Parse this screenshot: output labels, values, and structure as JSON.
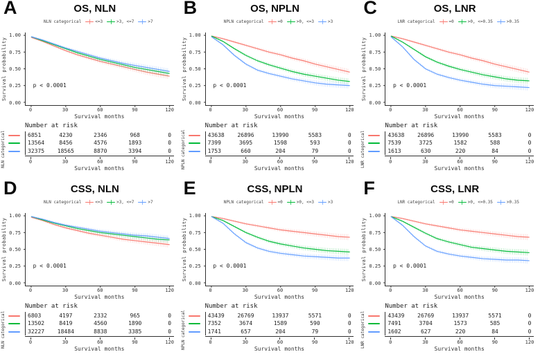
{
  "shared": {
    "ylabel": "Survival probability",
    "xlabel": "Survival months",
    "risk_header": "Number at risk",
    "ytick_labels": [
      "1.00",
      "0.75",
      "0.50",
      "0.25",
      "0.00"
    ],
    "xtick_labels": [
      "0",
      "30",
      "60",
      "90",
      "120"
    ]
  },
  "colors": {
    "red": "#F8766D",
    "green": "#00BA38",
    "blue": "#619CFF",
    "axis": "#333333"
  },
  "chart_data": [
    {
      "type": "line",
      "letter": "A",
      "title": "OS, NLN",
      "legend_title": "NLN categorical",
      "annotation": "p < 0.0001",
      "xlabel": "Survival months",
      "ylabel": "Survival probability",
      "xlim": [
        0,
        120
      ],
      "ylim": [
        0,
        1
      ],
      "xticks": [
        0,
        30,
        60,
        90,
        120
      ],
      "yticks": [
        0,
        0.25,
        0.5,
        0.75,
        1
      ],
      "legend_position": "top",
      "grid": false,
      "x": [
        0,
        10,
        20,
        30,
        40,
        50,
        60,
        70,
        80,
        90,
        100,
        110,
        120
      ],
      "series": [
        {
          "name": "<=3",
          "color": "red",
          "values": [
            0.97,
            0.91,
            0.84,
            0.77,
            0.71,
            0.66,
            0.61,
            0.57,
            0.53,
            0.49,
            0.45,
            0.42,
            0.39
          ]
        },
        {
          "name": ">3, <=7",
          "color": "green",
          "values": [
            0.98,
            0.92,
            0.86,
            0.8,
            0.74,
            0.69,
            0.64,
            0.6,
            0.56,
            0.52,
            0.49,
            0.46,
            0.43
          ]
        },
        {
          "name": ">7",
          "color": "blue",
          "values": [
            0.98,
            0.93,
            0.87,
            0.81,
            0.76,
            0.71,
            0.66,
            0.62,
            0.58,
            0.55,
            0.52,
            0.49,
            0.46
          ]
        }
      ],
      "risk_table": {
        "axis_label": "NLN categorical",
        "rows": [
          [
            "6851",
            "4230",
            "2346",
            "968",
            "0"
          ],
          [
            "13564",
            "8456",
            "4576",
            "1893",
            "0"
          ],
          [
            "32375",
            "18565",
            "8870",
            "3394",
            "0"
          ]
        ]
      }
    },
    {
      "type": "line",
      "letter": "B",
      "title": "OS, NPLN",
      "legend_title": "NPLN categorical",
      "annotation": "p < 0.0001",
      "xlabel": "Survival months",
      "ylabel": "Survival probability",
      "xlim": [
        0,
        120
      ],
      "ylim": [
        0,
        1
      ],
      "xticks": [
        0,
        30,
        60,
        90,
        120
      ],
      "yticks": [
        0,
        0.25,
        0.5,
        0.75,
        1
      ],
      "legend_position": "top",
      "grid": false,
      "x": [
        0,
        10,
        20,
        30,
        40,
        50,
        60,
        70,
        80,
        90,
        100,
        110,
        120
      ],
      "series": [
        {
          "name": "=0",
          "color": "red",
          "values": [
            0.99,
            0.95,
            0.9,
            0.85,
            0.8,
            0.75,
            0.71,
            0.66,
            0.62,
            0.57,
            0.53,
            0.49,
            0.45
          ]
        },
        {
          "name": ">0, <=3",
          "color": "green",
          "values": [
            0.99,
            0.91,
            0.8,
            0.7,
            0.62,
            0.56,
            0.51,
            0.46,
            0.42,
            0.39,
            0.36,
            0.33,
            0.31
          ]
        },
        {
          "name": ">3",
          "color": "blue",
          "values": [
            0.98,
            0.86,
            0.7,
            0.57,
            0.48,
            0.43,
            0.39,
            0.35,
            0.32,
            0.29,
            0.27,
            0.26,
            0.25
          ]
        }
      ],
      "risk_table": {
        "axis_label": "NPLN categorical",
        "rows": [
          [
            "43638",
            "26896",
            "13990",
            "5583",
            "0"
          ],
          [
            "7399",
            "3695",
            "1598",
            "593",
            "0"
          ],
          [
            "1753",
            "660",
            "204",
            "79",
            "0"
          ]
        ]
      }
    },
    {
      "type": "line",
      "letter": "C",
      "title": "OS, LNR",
      "legend_title": "LNR categorical",
      "annotation": "p < 0.0001",
      "xlabel": "Survival months",
      "ylabel": "Survival probability",
      "xlim": [
        0,
        120
      ],
      "ylim": [
        0,
        1
      ],
      "xticks": [
        0,
        30,
        60,
        90,
        120
      ],
      "yticks": [
        0,
        0.25,
        0.5,
        0.75,
        1
      ],
      "legend_position": "top",
      "grid": false,
      "x": [
        0,
        10,
        20,
        30,
        40,
        50,
        60,
        70,
        80,
        90,
        100,
        110,
        120
      ],
      "series": [
        {
          "name": "=0",
          "color": "red",
          "values": [
            0.99,
            0.95,
            0.9,
            0.85,
            0.8,
            0.75,
            0.71,
            0.66,
            0.62,
            0.57,
            0.53,
            0.49,
            0.45
          ]
        },
        {
          "name": ">0, <=0.35",
          "color": "green",
          "values": [
            0.99,
            0.9,
            0.79,
            0.68,
            0.6,
            0.54,
            0.49,
            0.45,
            0.41,
            0.38,
            0.35,
            0.33,
            0.32
          ]
        },
        {
          "name": ">0.35",
          "color": "blue",
          "values": [
            0.98,
            0.83,
            0.64,
            0.5,
            0.42,
            0.37,
            0.33,
            0.3,
            0.27,
            0.25,
            0.24,
            0.23,
            0.22
          ]
        }
      ],
      "risk_table": {
        "axis_label": "LNR categorical",
        "rows": [
          [
            "43638",
            "26896",
            "13990",
            "5583",
            "0"
          ],
          [
            "7539",
            "3725",
            "1582",
            "588",
            "0"
          ],
          [
            "1613",
            "630",
            "220",
            "84",
            "0"
          ]
        ]
      }
    },
    {
      "type": "line",
      "letter": "D",
      "title": "CSS, NLN",
      "legend_title": "NLN categorical",
      "annotation": "p < 0.0001",
      "xlabel": "Survival months",
      "ylabel": "Survival probability",
      "xlim": [
        0,
        120
      ],
      "ylim": [
        0,
        1
      ],
      "xticks": [
        0,
        30,
        60,
        90,
        120
      ],
      "yticks": [
        0,
        0.25,
        0.5,
        0.75,
        1
      ],
      "legend_position": "top",
      "grid": false,
      "x": [
        0,
        10,
        20,
        30,
        40,
        50,
        60,
        70,
        80,
        90,
        100,
        110,
        120
      ],
      "series": [
        {
          "name": "<=3",
          "color": "red",
          "values": [
            0.98,
            0.93,
            0.87,
            0.82,
            0.78,
            0.74,
            0.71,
            0.68,
            0.65,
            0.63,
            0.61,
            0.59,
            0.57
          ]
        },
        {
          "name": ">3, <=7",
          "color": "green",
          "values": [
            0.99,
            0.94,
            0.89,
            0.85,
            0.81,
            0.78,
            0.75,
            0.73,
            0.71,
            0.69,
            0.67,
            0.65,
            0.64
          ]
        },
        {
          "name": ">7",
          "color": "blue",
          "values": [
            0.99,
            0.95,
            0.9,
            0.86,
            0.83,
            0.8,
            0.77,
            0.75,
            0.73,
            0.71,
            0.7,
            0.68,
            0.66
          ]
        }
      ],
      "risk_table": {
        "axis_label": "NLN categorical",
        "rows": [
          [
            "6803",
            "4197",
            "2332",
            "965",
            "0"
          ],
          [
            "13502",
            "8419",
            "4560",
            "1890",
            "0"
          ],
          [
            "32227",
            "18484",
            "8838",
            "3385",
            "0"
          ]
        ]
      }
    },
    {
      "type": "line",
      "letter": "E",
      "title": "CSS, NPLN",
      "legend_title": "NPLN categorical",
      "annotation": "p < 0.0001",
      "xlabel": "Survival months",
      "ylabel": "Survival probability",
      "xlim": [
        0,
        120
      ],
      "ylim": [
        0,
        1
      ],
      "xticks": [
        0,
        30,
        60,
        90,
        120
      ],
      "yticks": [
        0,
        0.25,
        0.5,
        0.75,
        1
      ],
      "legend_position": "top",
      "grid": false,
      "x": [
        0,
        10,
        20,
        30,
        40,
        50,
        60,
        70,
        80,
        90,
        100,
        110,
        120
      ],
      "series": [
        {
          "name": "=0",
          "color": "red",
          "values": [
            0.99,
            0.96,
            0.92,
            0.88,
            0.85,
            0.82,
            0.79,
            0.77,
            0.75,
            0.73,
            0.71,
            0.69,
            0.68
          ]
        },
        {
          "name": ">0, <=3",
          "color": "green",
          "values": [
            0.99,
            0.93,
            0.84,
            0.75,
            0.68,
            0.62,
            0.58,
            0.55,
            0.52,
            0.5,
            0.48,
            0.47,
            0.46
          ]
        },
        {
          "name": ">3",
          "color": "blue",
          "values": [
            0.99,
            0.89,
            0.73,
            0.6,
            0.52,
            0.47,
            0.44,
            0.42,
            0.4,
            0.39,
            0.38,
            0.37,
            0.37
          ]
        }
      ],
      "risk_table": {
        "axis_label": "NPLN categorical",
        "rows": [
          [
            "43439",
            "26769",
            "13937",
            "5571",
            "0"
          ],
          [
            "7352",
            "3674",
            "1589",
            "590",
            "0"
          ],
          [
            "1741",
            "657",
            "204",
            "79",
            "0"
          ]
        ]
      }
    },
    {
      "type": "line",
      "letter": "F",
      "title": "CSS, LNR",
      "legend_title": "LNR categorical",
      "annotation": "p < 0.0001",
      "xlabel": "Survival months",
      "ylabel": "Survival probability",
      "xlim": [
        0,
        120
      ],
      "ylim": [
        0,
        1
      ],
      "xticks": [
        0,
        30,
        60,
        90,
        120
      ],
      "yticks": [
        0,
        0.25,
        0.5,
        0.75,
        1
      ],
      "legend_position": "top",
      "grid": false,
      "x": [
        0,
        10,
        20,
        30,
        40,
        50,
        60,
        70,
        80,
        90,
        100,
        110,
        120
      ],
      "series": [
        {
          "name": "=0",
          "color": "red",
          "values": [
            0.99,
            0.96,
            0.92,
            0.88,
            0.85,
            0.82,
            0.79,
            0.77,
            0.75,
            0.73,
            0.71,
            0.69,
            0.68
          ]
        },
        {
          "name": ">0, <=0.35",
          "color": "green",
          "values": [
            0.99,
            0.92,
            0.83,
            0.74,
            0.66,
            0.61,
            0.57,
            0.53,
            0.51,
            0.49,
            0.47,
            0.46,
            0.45
          ]
        },
        {
          "name": ">0.35",
          "color": "blue",
          "values": [
            0.99,
            0.86,
            0.69,
            0.55,
            0.47,
            0.43,
            0.4,
            0.38,
            0.36,
            0.35,
            0.34,
            0.34,
            0.33
          ]
        }
      ],
      "risk_table": {
        "axis_label": "LNR categorical",
        "rows": [
          [
            "43439",
            "26769",
            "13937",
            "5571",
            "0"
          ],
          [
            "7491",
            "3704",
            "1573",
            "585",
            "0"
          ],
          [
            "1602",
            "627",
            "220",
            "84",
            "0"
          ]
        ]
      }
    }
  ]
}
